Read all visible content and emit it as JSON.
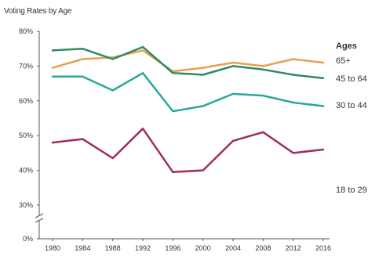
{
  "chart_data": {
    "type": "line",
    "title": "Voting Rates by Age",
    "xlabel": "",
    "ylabel": "",
    "x": [
      "1980",
      "1984",
      "1988",
      "1992",
      "1996",
      "2000",
      "2004",
      "2008",
      "2012",
      "2016"
    ],
    "y_ticks": [
      "0%",
      "30%",
      "40%",
      "50%",
      "60%",
      "70%",
      "80%"
    ],
    "ylim": [
      0,
      80
    ],
    "y_axis_break": true,
    "grid": false,
    "legend_title": "Ages",
    "legend_placement": "right, labels at line ends",
    "series": [
      {
        "name": "65+",
        "color": "#e8a050",
        "values": [
          69.5,
          72,
          72.5,
          74.5,
          68.5,
          69.5,
          71,
          70,
          72,
          71
        ]
      },
      {
        "name": "45 to 64",
        "color": "#2e8a63",
        "values": [
          74.5,
          75,
          72,
          75.5,
          68,
          67.5,
          70,
          69,
          67.5,
          66.5
        ]
      },
      {
        "name": "30 to 44",
        "color": "#2aa79b",
        "values": [
          67,
          67,
          63,
          68,
          57,
          58.5,
          62,
          61.5,
          59.5,
          58.5
        ]
      },
      {
        "name": "18 to 29",
        "color": "#a02a63",
        "values": [
          48,
          49,
          43.5,
          52,
          39.5,
          40,
          48.5,
          51,
          45,
          46
        ]
      }
    ]
  }
}
